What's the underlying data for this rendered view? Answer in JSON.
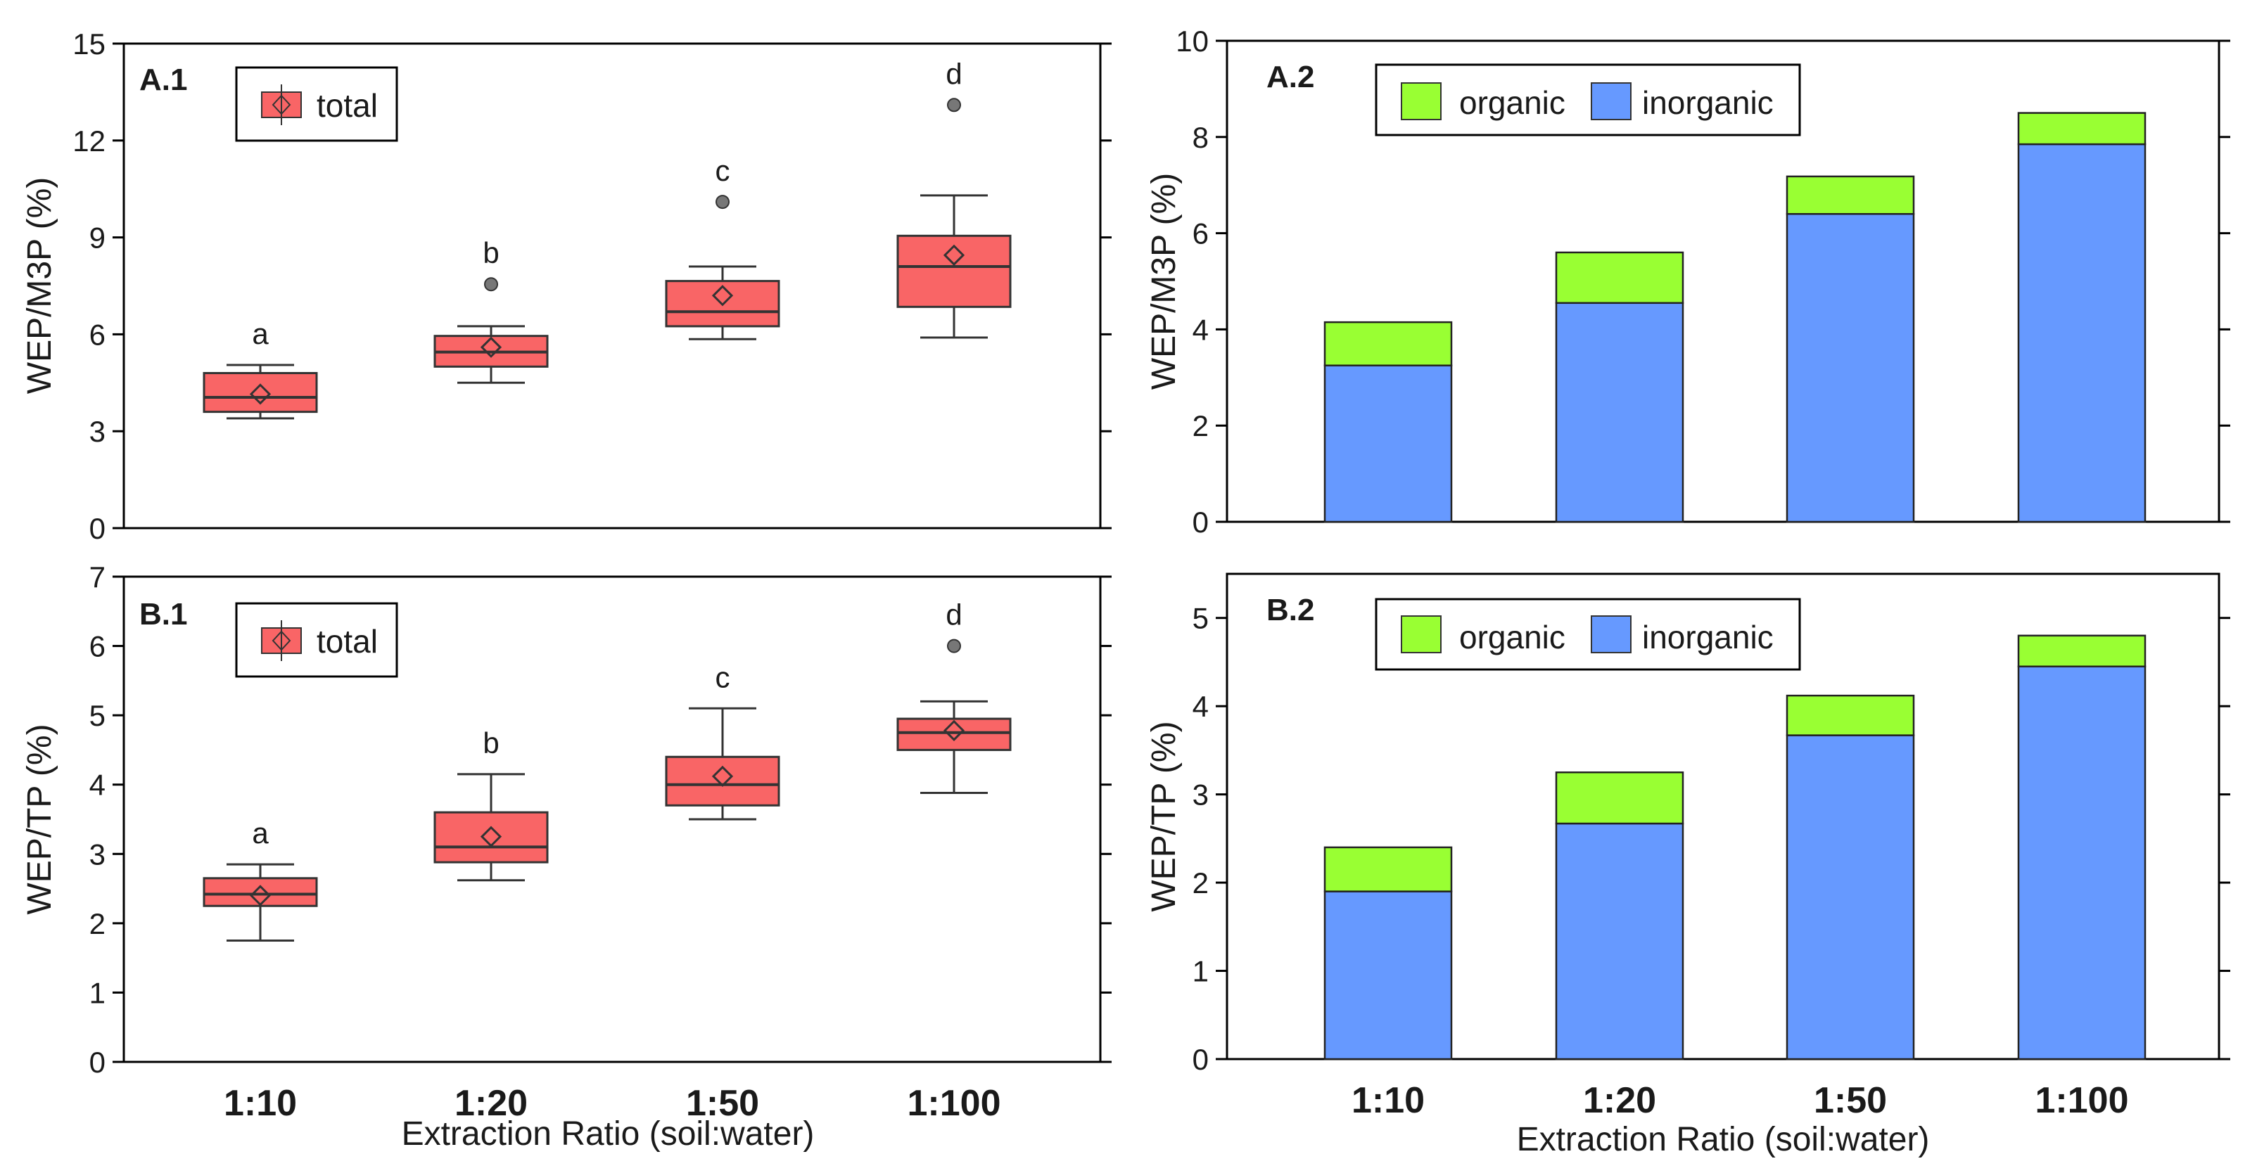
{
  "chart_data": [
    {
      "id": "A1",
      "type": "box",
      "panel_label": "A.1",
      "ylabel": "WEP/M3P (%)",
      "ylim": [
        0,
        15
      ],
      "yticks": [
        0,
        3,
        6,
        9,
        12,
        15
      ],
      "categories": [
        "1:10",
        "1:20",
        "1:50",
        "1:100"
      ],
      "legend": [
        {
          "name": "total",
          "color": "#f96566"
        }
      ],
      "boxes": [
        {
          "category": "1:10",
          "whisker_low": 3.4,
          "q1": 3.6,
          "median": 4.05,
          "q3": 4.8,
          "whisker_high": 5.05,
          "mean": 4.15,
          "outliers": [],
          "letter": "a"
        },
        {
          "category": "1:20",
          "whisker_low": 4.5,
          "q1": 5.0,
          "median": 5.45,
          "q3": 5.95,
          "whisker_high": 6.25,
          "mean": 5.6,
          "outliers": [
            7.55
          ],
          "letter": "b"
        },
        {
          "category": "1:50",
          "whisker_low": 5.85,
          "q1": 6.25,
          "median": 6.7,
          "q3": 7.65,
          "whisker_high": 8.1,
          "mean": 7.2,
          "outliers": [
            10.1
          ],
          "letter": "c"
        },
        {
          "category": "1:100",
          "whisker_low": 5.9,
          "q1": 6.85,
          "median": 8.1,
          "q3": 9.05,
          "whisker_high": 10.3,
          "mean": 8.45,
          "outliers": [
            13.1
          ],
          "letter": "d"
        }
      ]
    },
    {
      "id": "A2",
      "type": "bar",
      "stacked": true,
      "panel_label": "A.2",
      "ylabel": "WEP/M3P (%)",
      "ylim": [
        0,
        10
      ],
      "yticks": [
        0,
        2,
        4,
        6,
        8,
        10
      ],
      "categories": [
        "1:10",
        "1:20",
        "1:50",
        "1:100"
      ],
      "series": [
        {
          "name": "inorganic",
          "color": "#6699ff",
          "values": [
            3.25,
            4.55,
            6.4,
            7.85
          ]
        },
        {
          "name": "organic",
          "color": "#99ff33",
          "values": [
            0.9,
            1.05,
            0.78,
            0.65
          ]
        }
      ]
    },
    {
      "id": "B1",
      "type": "box",
      "panel_label": "B.1",
      "ylabel": "WEP/TP (%)",
      "xlabel": "Extraction Ratio (soil:water)",
      "ylim": [
        0,
        7
      ],
      "yticks": [
        0,
        1,
        2,
        3,
        4,
        5,
        6,
        7
      ],
      "categories": [
        "1:10",
        "1:20",
        "1:50",
        "1:100"
      ],
      "legend": [
        {
          "name": "total",
          "color": "#f96566"
        }
      ],
      "boxes": [
        {
          "category": "1:10",
          "whisker_low": 1.75,
          "q1": 2.25,
          "median": 2.42,
          "q3": 2.65,
          "whisker_high": 2.85,
          "mean": 2.4,
          "outliers": [],
          "letter": "a"
        },
        {
          "category": "1:20",
          "whisker_low": 2.62,
          "q1": 2.88,
          "median": 3.1,
          "q3": 3.6,
          "whisker_high": 4.15,
          "mean": 3.25,
          "outliers": [],
          "letter": "b"
        },
        {
          "category": "1:50",
          "whisker_low": 3.5,
          "q1": 3.7,
          "median": 4.0,
          "q3": 4.4,
          "whisker_high": 5.1,
          "mean": 4.12,
          "outliers": [],
          "letter": "c"
        },
        {
          "category": "1:100",
          "whisker_low": 3.88,
          "q1": 4.5,
          "median": 4.75,
          "q3": 4.95,
          "whisker_high": 5.2,
          "mean": 4.78,
          "outliers": [
            6.0
          ],
          "letter": "d"
        }
      ]
    },
    {
      "id": "B2",
      "type": "bar",
      "stacked": true,
      "panel_label": "B.2",
      "ylabel": "WEP/TP (%)",
      "xlabel": "Extraction Ratio (soil:water)",
      "ylim": [
        0,
        5.5
      ],
      "yticks": [
        0,
        1,
        2,
        3,
        4,
        5
      ],
      "categories": [
        "1:10",
        "1:20",
        "1:50",
        "1:100"
      ],
      "series": [
        {
          "name": "inorganic",
          "color": "#6699ff",
          "values": [
            1.9,
            2.67,
            3.67,
            4.45
          ]
        },
        {
          "name": "organic",
          "color": "#99ff33",
          "values": [
            0.5,
            0.58,
            0.45,
            0.35
          ]
        }
      ]
    }
  ]
}
